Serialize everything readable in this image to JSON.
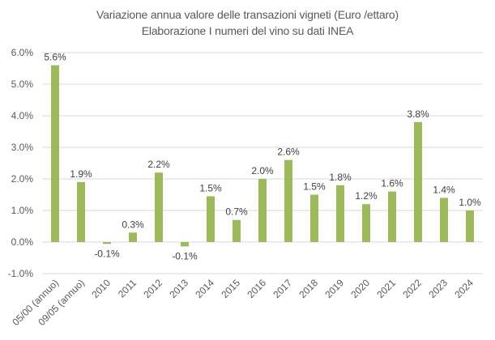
{
  "chart_data": {
    "type": "bar",
    "title": "Variazione annua valore delle transazioni vigneti (Euro /ettaro)",
    "subtitle": "Elaborazione I numeri del vino su dati INEA",
    "xlabel": "",
    "ylabel": "",
    "ylim": [
      -1.0,
      6.0
    ],
    "yticks": [
      -1.0,
      0.0,
      1.0,
      2.0,
      3.0,
      4.0,
      5.0,
      6.0
    ],
    "ytick_labels": [
      "-1.0%",
      "0.0%",
      "1.0%",
      "2.0%",
      "3.0%",
      "4.0%",
      "5.0%",
      "6.0%"
    ],
    "grid": true,
    "legend": "none",
    "bar_color": "#9BBB59",
    "categories": [
      "05/00 (annuo)",
      "09/05 (annuo)",
      "2010",
      "2011",
      "2012",
      "2013",
      "2014",
      "2015",
      "2016",
      "2017",
      "2018",
      "2019",
      "2020",
      "2021",
      "2022",
      "2023",
      "2024"
    ],
    "values": [
      5.6,
      1.9,
      -0.06,
      0.3,
      2.2,
      -0.14,
      1.45,
      0.7,
      2.0,
      2.6,
      1.5,
      1.8,
      1.2,
      1.6,
      3.8,
      1.4,
      1.0
    ],
    "data_labels": [
      "5.6%",
      "1.9%",
      "-0.1%",
      "0.3%",
      "2.2%",
      "-0.1%",
      "1.5%",
      "0.7%",
      "2.0%",
      "2.6%",
      "1.5%",
      "1.8%",
      "1.2%",
      "1.6%",
      "3.8%",
      "1.4%",
      "1.0%"
    ]
  }
}
